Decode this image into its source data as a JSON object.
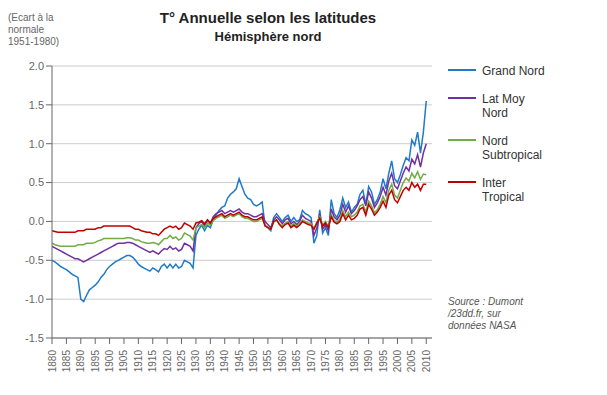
{
  "chart_data": {
    "type": "line",
    "title": "T° Annuelle selon les latitudes",
    "subtitle": "Hémisphère nord",
    "ylabel": "(Ecart à la\nnormale\n1951-1980)",
    "annotation": "Source : Dumont\n/23dd.fr, sur\ndonnées NASA",
    "x": [
      1880,
      1881,
      1882,
      1883,
      1884,
      1885,
      1886,
      1887,
      1888,
      1889,
      1890,
      1891,
      1892,
      1893,
      1894,
      1895,
      1896,
      1897,
      1898,
      1899,
      1900,
      1901,
      1902,
      1903,
      1904,
      1905,
      1906,
      1907,
      1908,
      1909,
      1910,
      1911,
      1912,
      1913,
      1914,
      1915,
      1916,
      1917,
      1918,
      1919,
      1920,
      1921,
      1922,
      1923,
      1924,
      1925,
      1926,
      1927,
      1928,
      1929,
      1930,
      1931,
      1932,
      1933,
      1934,
      1935,
      1936,
      1937,
      1938,
      1939,
      1940,
      1941,
      1942,
      1943,
      1944,
      1945,
      1946,
      1947,
      1948,
      1949,
      1950,
      1951,
      1952,
      1953,
      1954,
      1955,
      1956,
      1957,
      1958,
      1959,
      1960,
      1961,
      1962,
      1963,
      1964,
      1965,
      1966,
      1967,
      1968,
      1969,
      1970,
      1971,
      1972,
      1973,
      1974,
      1975,
      1976,
      1977,
      1978,
      1979,
      1980,
      1981,
      1982,
      1983,
      1984,
      1985,
      1986,
      1987,
      1988,
      1989,
      1990,
      1991,
      1992,
      1993,
      1994,
      1995,
      1996,
      1997,
      1998,
      1999,
      2000,
      2001,
      2002,
      2003,
      2004,
      2005,
      2006,
      2007,
      2008,
      2009,
      2010
    ],
    "series": [
      {
        "name": "Grand Nord",
        "color": "#1f7bc8",
        "values": [
          -0.5,
          -0.52,
          -0.55,
          -0.58,
          -0.6,
          -0.62,
          -0.65,
          -0.68,
          -0.7,
          -0.72,
          -1.0,
          -1.03,
          -0.95,
          -0.88,
          -0.85,
          -0.82,
          -0.78,
          -0.72,
          -0.68,
          -0.62,
          -0.58,
          -0.55,
          -0.52,
          -0.5,
          -0.48,
          -0.46,
          -0.44,
          -0.44,
          -0.46,
          -0.5,
          -0.55,
          -0.58,
          -0.6,
          -0.62,
          -0.64,
          -0.6,
          -0.62,
          -0.65,
          -0.58,
          -0.55,
          -0.6,
          -0.55,
          -0.6,
          -0.55,
          -0.6,
          -0.58,
          -0.5,
          -0.52,
          -0.54,
          -0.6,
          -0.18,
          -0.1,
          -0.05,
          -0.12,
          -0.05,
          -0.08,
          0.02,
          0.08,
          0.14,
          0.18,
          0.2,
          0.3,
          0.35,
          0.38,
          0.42,
          0.55,
          0.45,
          0.35,
          0.3,
          0.28,
          0.22,
          0.2,
          0.22,
          0.25,
          -0.05,
          -0.08,
          -0.12,
          0.05,
          0.1,
          0.05,
          0.0,
          0.05,
          0.08,
          0.0,
          0.05,
          0.0,
          0.02,
          0.14,
          0.1,
          0.08,
          0.05,
          -0.28,
          -0.18,
          0.15,
          -0.15,
          -0.08,
          -0.18,
          0.28,
          0.1,
          0.05,
          0.15,
          0.3,
          0.18,
          0.25,
          0.12,
          0.18,
          0.22,
          0.35,
          0.4,
          0.22,
          0.45,
          0.38,
          0.22,
          0.28,
          0.38,
          0.55,
          0.42,
          0.62,
          0.78,
          0.55,
          0.5,
          0.6,
          0.72,
          0.82,
          0.78,
          1.05,
          0.98,
          1.15,
          0.88,
          1.15,
          1.55
        ]
      },
      {
        "name": "Lat Moy\nNord",
        "color": "#7030a0",
        "values": [
          -0.32,
          -0.34,
          -0.36,
          -0.38,
          -0.4,
          -0.42,
          -0.44,
          -0.46,
          -0.48,
          -0.48,
          -0.5,
          -0.52,
          -0.5,
          -0.48,
          -0.46,
          -0.44,
          -0.42,
          -0.4,
          -0.38,
          -0.36,
          -0.34,
          -0.32,
          -0.3,
          -0.28,
          -0.28,
          -0.28,
          -0.27,
          -0.27,
          -0.28,
          -0.3,
          -0.32,
          -0.34,
          -0.36,
          -0.38,
          -0.4,
          -0.38,
          -0.4,
          -0.42,
          -0.38,
          -0.35,
          -0.36,
          -0.32,
          -0.36,
          -0.34,
          -0.38,
          -0.36,
          -0.28,
          -0.3,
          -0.32,
          -0.38,
          -0.08,
          -0.03,
          0.0,
          -0.06,
          0.02,
          -0.03,
          0.06,
          0.1,
          0.12,
          0.14,
          0.1,
          0.12,
          0.14,
          0.12,
          0.14,
          0.16,
          0.12,
          0.1,
          0.1,
          0.08,
          0.06,
          0.06,
          0.08,
          0.1,
          0.0,
          -0.04,
          -0.08,
          0.02,
          0.06,
          0.02,
          -0.03,
          0.02,
          0.04,
          -0.03,
          0.0,
          -0.04,
          0.0,
          0.08,
          0.04,
          0.02,
          0.0,
          -0.18,
          -0.08,
          0.1,
          -0.1,
          -0.04,
          -0.12,
          0.16,
          0.06,
          0.02,
          0.08,
          0.22,
          0.12,
          0.2,
          0.1,
          0.14,
          0.2,
          0.28,
          0.32,
          0.2,
          0.38,
          0.3,
          0.18,
          0.24,
          0.32,
          0.44,
          0.34,
          0.52,
          0.62,
          0.46,
          0.42,
          0.52,
          0.62,
          0.7,
          0.65,
          0.8,
          0.74,
          0.86,
          0.7,
          0.88,
          1.0
        ]
      },
      {
        "name": "Nord\nSubtropical",
        "color": "#70ad47",
        "values": [
          -0.28,
          -0.3,
          -0.31,
          -0.32,
          -0.32,
          -0.32,
          -0.32,
          -0.32,
          -0.32,
          -0.3,
          -0.3,
          -0.3,
          -0.28,
          -0.28,
          -0.28,
          -0.27,
          -0.25,
          -0.24,
          -0.22,
          -0.22,
          -0.22,
          -0.22,
          -0.22,
          -0.22,
          -0.22,
          -0.22,
          -0.21,
          -0.21,
          -0.22,
          -0.24,
          -0.24,
          -0.26,
          -0.27,
          -0.28,
          -0.28,
          -0.27,
          -0.28,
          -0.3,
          -0.26,
          -0.22,
          -0.22,
          -0.18,
          -0.22,
          -0.2,
          -0.24,
          -0.22,
          -0.15,
          -0.17,
          -0.19,
          -0.24,
          -0.08,
          -0.06,
          -0.04,
          -0.08,
          -0.02,
          -0.05,
          0.01,
          0.04,
          0.06,
          0.08,
          0.04,
          0.06,
          0.08,
          0.06,
          0.08,
          0.1,
          0.06,
          0.04,
          0.04,
          0.02,
          0.0,
          0.0,
          0.02,
          0.04,
          -0.05,
          -0.07,
          -0.1,
          -0.01,
          0.02,
          -0.03,
          -0.06,
          -0.02,
          0.0,
          -0.06,
          -0.03,
          -0.06,
          -0.03,
          0.02,
          0.0,
          -0.02,
          -0.03,
          -0.09,
          -0.01,
          0.06,
          -0.05,
          0.0,
          -0.07,
          0.09,
          0.01,
          -0.01,
          0.03,
          0.14,
          0.06,
          0.12,
          0.06,
          0.08,
          0.12,
          0.2,
          0.22,
          0.12,
          0.26,
          0.2,
          0.11,
          0.15,
          0.22,
          0.32,
          0.24,
          0.4,
          0.48,
          0.34,
          0.3,
          0.4,
          0.5,
          0.56,
          0.52,
          0.62,
          0.56,
          0.64,
          0.54,
          0.61,
          0.6
        ]
      },
      {
        "name": "Inter\nTropical",
        "color": "#c00000",
        "values": [
          -0.12,
          -0.13,
          -0.14,
          -0.14,
          -0.14,
          -0.14,
          -0.14,
          -0.14,
          -0.14,
          -0.12,
          -0.12,
          -0.12,
          -0.1,
          -0.1,
          -0.1,
          -0.1,
          -0.08,
          -0.08,
          -0.06,
          -0.06,
          -0.06,
          -0.06,
          -0.06,
          -0.06,
          -0.06,
          -0.06,
          -0.06,
          -0.06,
          -0.08,
          -0.1,
          -0.1,
          -0.12,
          -0.13,
          -0.14,
          -0.14,
          -0.16,
          -0.16,
          -0.18,
          -0.14,
          -0.1,
          -0.08,
          -0.06,
          -0.08,
          -0.06,
          -0.1,
          -0.08,
          -0.02,
          -0.04,
          -0.06,
          -0.1,
          -0.02,
          -0.01,
          0.01,
          -0.03,
          0.02,
          -0.02,
          0.04,
          0.06,
          0.08,
          0.1,
          0.06,
          0.08,
          0.1,
          0.08,
          0.1,
          0.12,
          0.08,
          0.06,
          0.06,
          0.04,
          0.02,
          0.02,
          0.04,
          0.06,
          -0.06,
          -0.08,
          -0.1,
          0.0,
          0.02,
          -0.04,
          -0.08,
          -0.04,
          -0.02,
          -0.08,
          -0.05,
          -0.08,
          -0.05,
          0.0,
          -0.02,
          -0.04,
          -0.05,
          -0.1,
          -0.02,
          0.04,
          -0.06,
          -0.02,
          -0.08,
          0.06,
          -0.01,
          -0.03,
          0.0,
          0.1,
          0.02,
          0.08,
          0.02,
          0.04,
          0.08,
          0.16,
          0.18,
          0.08,
          0.22,
          0.16,
          0.08,
          0.12,
          0.18,
          0.26,
          0.18,
          0.34,
          0.4,
          0.28,
          0.24,
          0.32,
          0.4,
          0.44,
          0.4,
          0.5,
          0.44,
          0.48,
          0.4,
          0.48,
          0.48
        ]
      }
    ],
    "xlim": [
      1880,
      2012
    ],
    "xticks": [
      1880,
      1885,
      1890,
      1895,
      1900,
      1905,
      1910,
      1915,
      1920,
      1925,
      1930,
      1935,
      1940,
      1945,
      1950,
      1955,
      1960,
      1965,
      1970,
      1975,
      1980,
      1985,
      1990,
      1995,
      2000,
      2005,
      2010
    ],
    "ylim": [
      -1.5,
      2.0
    ],
    "yticks": [
      -1.5,
      {
        "value": -1,
        "label": "-1.0"
      },
      -0.5,
      {
        "value": 0,
        "label": "0.0"
      },
      0.5,
      {
        "value": 1,
        "label": "1.0"
      },
      1.5,
      {
        "value": 2,
        "label": "2.0"
      }
    ],
    "grid": true,
    "legend": "right"
  }
}
